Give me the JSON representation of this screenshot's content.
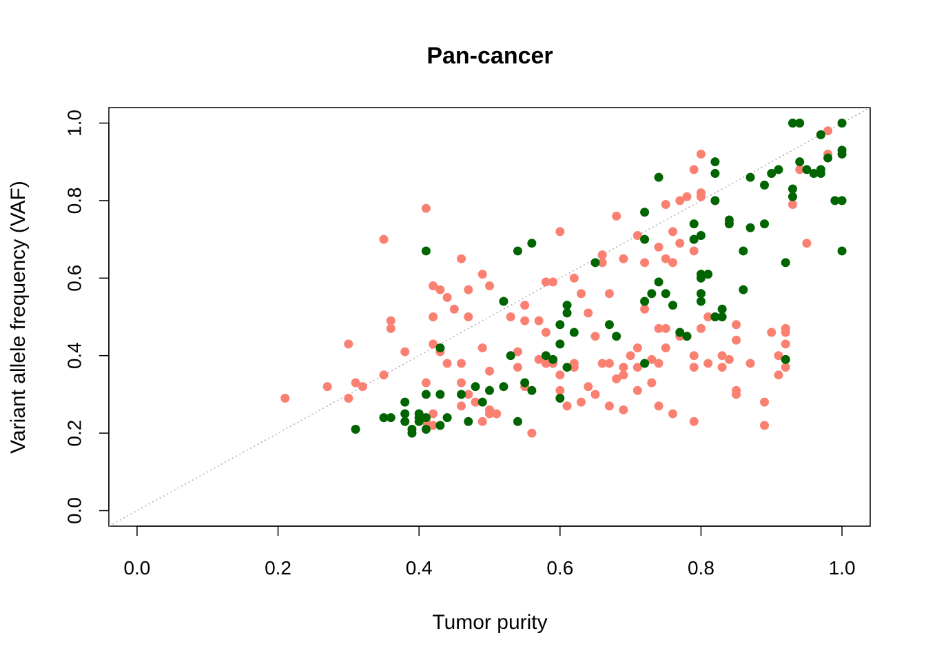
{
  "chart_data": {
    "type": "scatter",
    "title": "Pan-cancer",
    "xlabel": "Tumor purity",
    "ylabel": "Variant allele frequency (VAF)",
    "xlim": [
      -0.04,
      1.04
    ],
    "ylim": [
      -0.04,
      1.04
    ],
    "xticks": [
      "0.0",
      "0.2",
      "0.4",
      "0.6",
      "0.8",
      "1.0"
    ],
    "yticks": [
      "0.0",
      "0.2",
      "0.4",
      "0.6",
      "0.8",
      "1.0"
    ],
    "xtick_values": [
      0,
      0.2,
      0.4,
      0.6,
      0.8,
      1.0
    ],
    "ytick_values": [
      0,
      0.2,
      0.4,
      0.6,
      0.8,
      1.0
    ],
    "reference_line": {
      "slope": 1,
      "intercept": 0,
      "style": "dotted",
      "color": "#aaaaaa"
    },
    "grid": false,
    "series": [
      {
        "color": "#fa8072",
        "x": [
          0.21,
          0.27,
          0.3,
          0.3,
          0.31,
          0.32,
          0.35,
          0.35,
          0.36,
          0.36,
          0.38,
          0.41,
          0.41,
          0.41,
          0.42,
          0.42,
          0.42,
          0.42,
          0.42,
          0.43,
          0.43,
          0.44,
          0.44,
          0.45,
          0.46,
          0.46,
          0.46,
          0.46,
          0.47,
          0.47,
          0.47,
          0.48,
          0.49,
          0.49,
          0.49,
          0.5,
          0.5,
          0.5,
          0.5,
          0.51,
          0.53,
          0.54,
          0.54,
          0.55,
          0.55,
          0.55,
          0.56,
          0.57,
          0.57,
          0.58,
          0.58,
          0.58,
          0.59,
          0.59,
          0.59,
          0.6,
          0.6,
          0.6,
          0.61,
          0.62,
          0.62,
          0.62,
          0.63,
          0.63,
          0.64,
          0.64,
          0.65,
          0.65,
          0.66,
          0.66,
          0.66,
          0.67,
          0.67,
          0.67,
          0.68,
          0.68,
          0.69,
          0.69,
          0.69,
          0.69,
          0.7,
          0.71,
          0.71,
          0.71,
          0.71,
          0.72,
          0.72,
          0.73,
          0.73,
          0.74,
          0.74,
          0.74,
          0.74,
          0.75,
          0.75,
          0.75,
          0.75,
          0.76,
          0.76,
          0.76,
          0.77,
          0.77,
          0.77,
          0.78,
          0.78,
          0.79,
          0.79,
          0.79,
          0.79,
          0.79,
          0.8,
          0.8,
          0.8,
          0.8,
          0.8,
          0.81,
          0.81,
          0.83,
          0.83,
          0.84,
          0.85,
          0.85,
          0.85,
          0.85,
          0.87,
          0.89,
          0.89,
          0.9,
          0.91,
          0.91,
          0.92,
          0.92,
          0.92,
          0.92,
          0.93,
          0.94,
          0.95,
          0.98,
          0.98
        ],
        "y": [
          0.29,
          0.32,
          0.43,
          0.29,
          0.33,
          0.32,
          0.7,
          0.35,
          0.49,
          0.47,
          0.41,
          0.78,
          0.33,
          0.23,
          0.58,
          0.5,
          0.43,
          0.25,
          0.22,
          0.57,
          0.41,
          0.55,
          0.38,
          0.52,
          0.65,
          0.38,
          0.33,
          0.27,
          0.57,
          0.5,
          0.3,
          0.28,
          0.61,
          0.42,
          0.23,
          0.58,
          0.36,
          0.26,
          0.25,
          0.25,
          0.5,
          0.41,
          0.37,
          0.53,
          0.49,
          0.32,
          0.2,
          0.39,
          0.49,
          0.59,
          0.46,
          0.38,
          0.59,
          0.39,
          0.38,
          0.72,
          0.35,
          0.31,
          0.27,
          0.6,
          0.38,
          0.37,
          0.56,
          0.28,
          0.51,
          0.32,
          0.45,
          0.3,
          0.66,
          0.64,
          0.38,
          0.56,
          0.38,
          0.27,
          0.76,
          0.34,
          0.65,
          0.37,
          0.35,
          0.26,
          0.4,
          0.71,
          0.42,
          0.37,
          0.31,
          0.64,
          0.52,
          0.39,
          0.33,
          0.68,
          0.47,
          0.38,
          0.27,
          0.79,
          0.65,
          0.47,
          0.42,
          0.72,
          0.64,
          0.25,
          0.8,
          0.69,
          0.45,
          0.81,
          0.45,
          0.88,
          0.67,
          0.4,
          0.37,
          0.23,
          0.92,
          0.82,
          0.81,
          0.56,
          0.47,
          0.5,
          0.38,
          0.4,
          0.37,
          0.39,
          0.48,
          0.44,
          0.31,
          0.3,
          0.38,
          0.28,
          0.22,
          0.46,
          0.4,
          0.35,
          0.47,
          0.46,
          0.43,
          0.37,
          0.79,
          0.88,
          0.69,
          0.98,
          0.92
        ]
      },
      {
        "color": "#006400",
        "x": [
          0.31,
          0.35,
          0.36,
          0.38,
          0.38,
          0.38,
          0.39,
          0.39,
          0.4,
          0.4,
          0.4,
          0.41,
          0.41,
          0.41,
          0.41,
          0.43,
          0.43,
          0.43,
          0.44,
          0.46,
          0.47,
          0.48,
          0.49,
          0.5,
          0.52,
          0.52,
          0.53,
          0.54,
          0.54,
          0.55,
          0.56,
          0.56,
          0.58,
          0.59,
          0.6,
          0.6,
          0.6,
          0.61,
          0.61,
          0.61,
          0.62,
          0.65,
          0.67,
          0.68,
          0.72,
          0.72,
          0.72,
          0.72,
          0.73,
          0.74,
          0.74,
          0.75,
          0.76,
          0.77,
          0.78,
          0.79,
          0.79,
          0.8,
          0.8,
          0.8,
          0.8,
          0.8,
          0.81,
          0.82,
          0.82,
          0.82,
          0.82,
          0.83,
          0.83,
          0.84,
          0.84,
          0.86,
          0.86,
          0.87,
          0.87,
          0.89,
          0.89,
          0.9,
          0.91,
          0.92,
          0.92,
          0.93,
          0.93,
          0.93,
          0.94,
          0.94,
          0.95,
          0.96,
          0.97,
          0.97,
          0.97,
          0.98,
          0.99,
          1.0,
          1.0,
          1.0,
          1.0,
          1.0
        ],
        "y": [
          0.21,
          0.24,
          0.24,
          0.28,
          0.25,
          0.23,
          0.21,
          0.2,
          0.25,
          0.24,
          0.23,
          0.67,
          0.3,
          0.24,
          0.21,
          0.42,
          0.3,
          0.22,
          0.24,
          0.3,
          0.23,
          0.32,
          0.28,
          0.31,
          0.54,
          0.32,
          0.4,
          0.67,
          0.23,
          0.33,
          0.69,
          0.31,
          0.4,
          0.39,
          0.48,
          0.43,
          0.29,
          0.53,
          0.51,
          0.37,
          0.46,
          0.64,
          0.48,
          0.45,
          0.77,
          0.7,
          0.54,
          0.38,
          0.56,
          0.86,
          0.59,
          0.56,
          0.53,
          0.46,
          0.45,
          0.74,
          0.7,
          0.71,
          0.61,
          0.6,
          0.56,
          0.54,
          0.61,
          0.9,
          0.87,
          0.8,
          0.5,
          0.52,
          0.5,
          0.75,
          0.74,
          0.67,
          0.57,
          0.86,
          0.73,
          0.84,
          0.74,
          0.87,
          0.88,
          0.64,
          0.39,
          1.0,
          0.83,
          0.81,
          1.0,
          0.9,
          0.88,
          0.87,
          0.97,
          0.88,
          0.87,
          0.91,
          0.8,
          1.0,
          0.93,
          0.92,
          0.8,
          0.67
        ]
      }
    ]
  }
}
